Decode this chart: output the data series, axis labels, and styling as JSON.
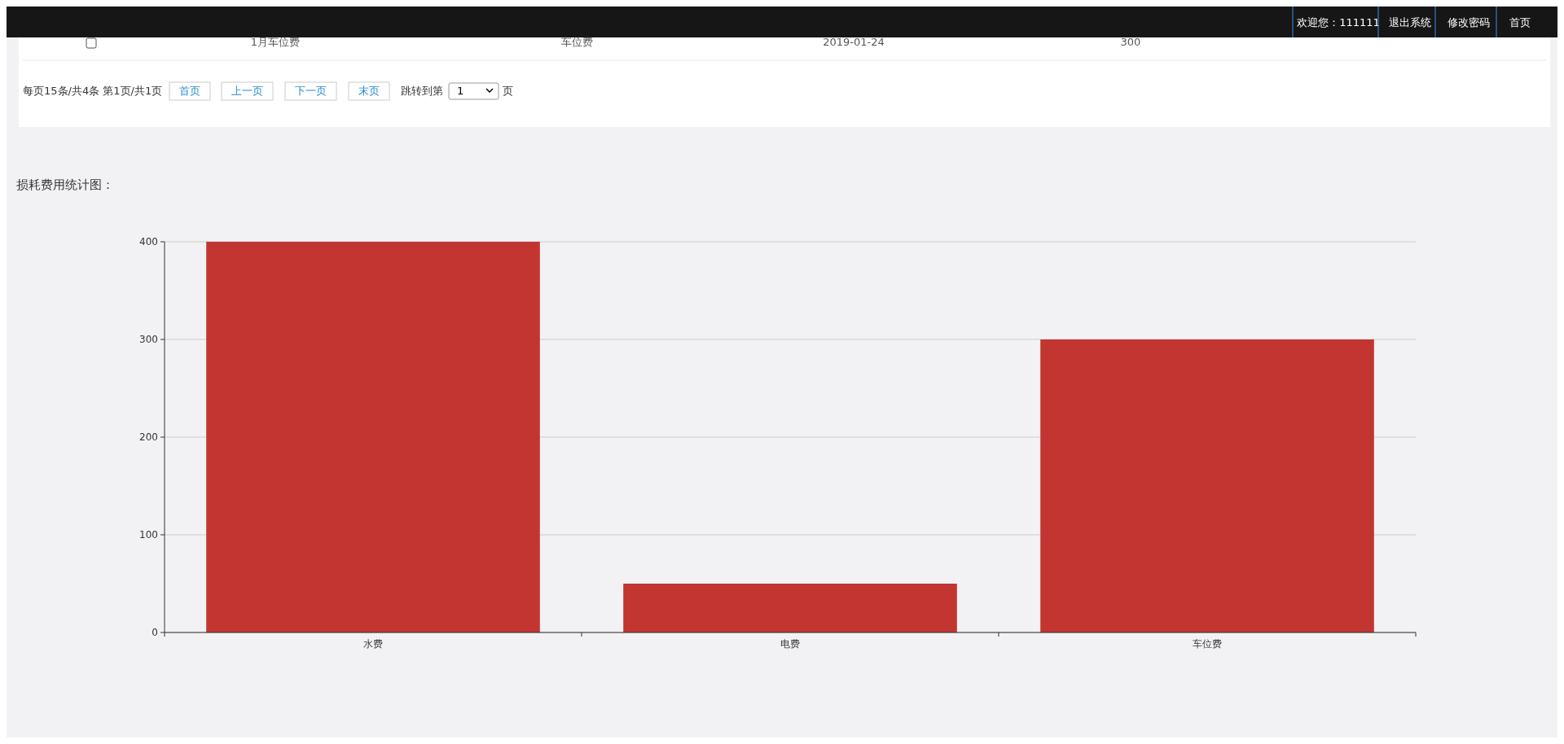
{
  "chart_data": {
    "type": "bar",
    "title": "损耗费用统计图：",
    "categories": [
      "水费",
      "电费",
      "车位费"
    ],
    "values": [
      400,
      50,
      300
    ],
    "color": "#c23531",
    "ylim": [
      0,
      400
    ],
    "yticks": [
      0,
      100,
      200,
      300,
      400
    ],
    "grid": "y",
    "annotations": [
      "欢迎您：111111",
      "退出系统",
      "修改密码",
      "首页",
      "1月车位费",
      "车位费",
      "2019-01-24",
      "300",
      "每页15条/共4条 第1页/共1页",
      "首页",
      "上一页",
      "下一页",
      "末页",
      "跳转到第",
      "1",
      "页"
    ]
  }
}
